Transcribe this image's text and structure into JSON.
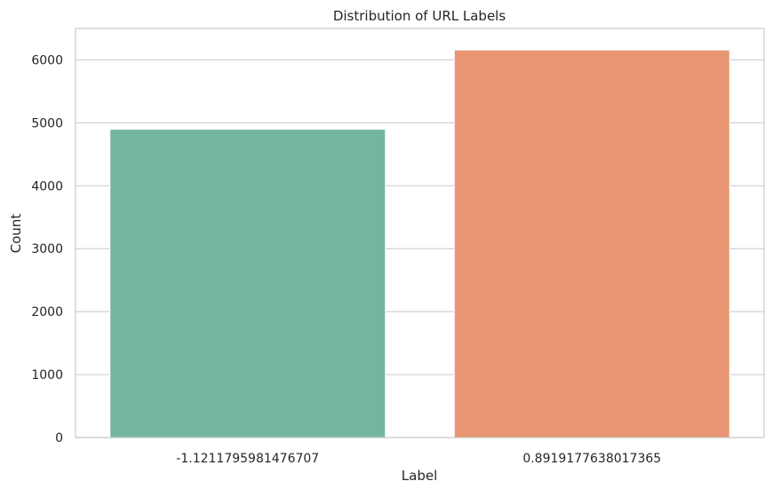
{
  "chart_data": {
    "type": "bar",
    "title": "Distribution of URL Labels",
    "xlabel": "Label",
    "ylabel": "Count",
    "categories": [
      "-1.1211795981476707",
      "0.8919177638017365"
    ],
    "values": [
      4898,
      6157
    ],
    "colors": [
      "#74b5a1",
      "#e89674"
    ],
    "ylim": [
      0,
      6500
    ],
    "yticks": [
      0,
      1000,
      2000,
      3000,
      4000,
      5000,
      6000
    ],
    "grid": "horizontal",
    "plot_background": "#ffffff",
    "grid_color": "#d0d0d0",
    "spine_color": "#cccccc"
  }
}
